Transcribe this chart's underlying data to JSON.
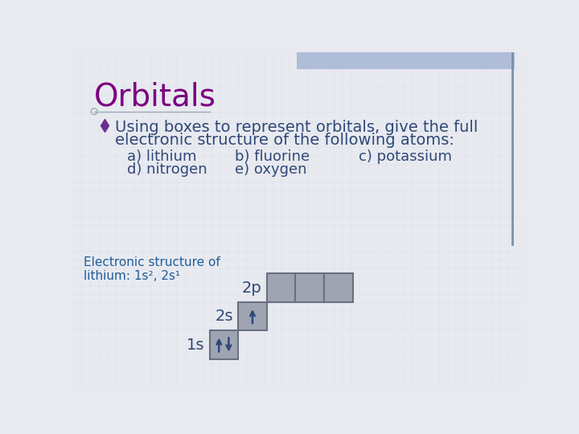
{
  "title": "Orbitals",
  "title_color": "#7B0080",
  "title_fontsize": 28,
  "bullet_text_line1": "Using boxes to represent orbitals, give the full",
  "bullet_text_line2": "electronic structure of the following atoms:",
  "body_color": "#2F4878",
  "body_fontsize": 14,
  "items_col1": "a) lithium\nd) nitrogen",
  "items_col2": "b) fluorine\ne) oxygen",
  "items_col3": "c) potassium",
  "items_fontsize": 13,
  "label_text": "Electronic structure of\nlithium: 1s², 2s¹",
  "label_color": "#1F5C99",
  "label_fontsize": 11,
  "background_color": "#E8EAF0",
  "grid_color": "#C8CEDE",
  "box_fill": "#9EA4B2",
  "box_edge": "#6A7080",
  "arrow_color": "#2F4878",
  "orbital_labels": [
    "2p",
    "2s",
    "1s"
  ],
  "orbital_label_color": "#2F4878",
  "orbital_label_fontsize": 14,
  "top_bar_color": "#B0BDD8",
  "right_line_color": "#7A90A8"
}
